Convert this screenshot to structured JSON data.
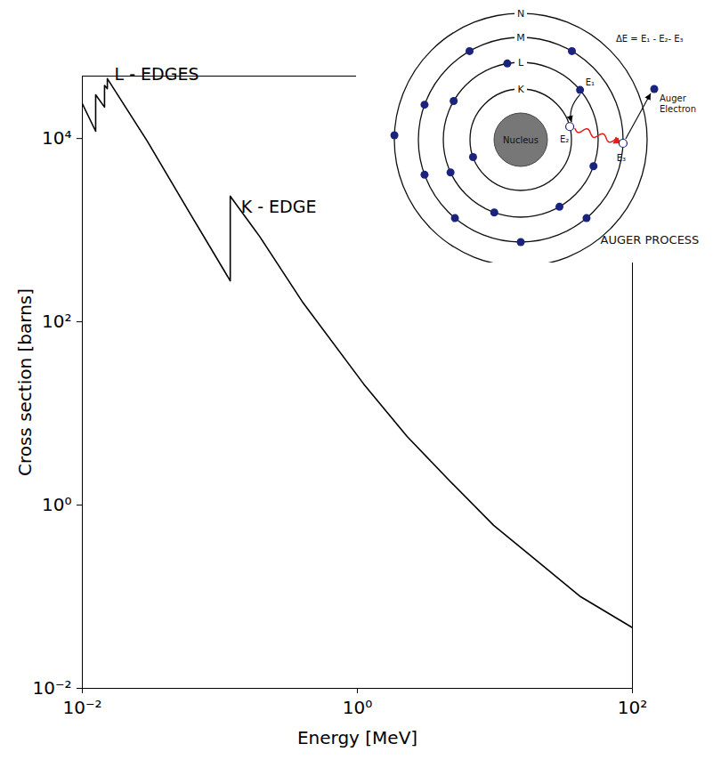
{
  "chart_data": {
    "type": "line",
    "log": true,
    "grid": false,
    "x_label": "Energy [MeV]",
    "y_label": "Cross section [barns]",
    "xlim": [
      0.01,
      100
    ],
    "ylim": [
      0.01,
      48000
    ],
    "xticks": [
      {
        "value": 0.01,
        "label": "10⁻²"
      },
      {
        "value": 1,
        "label": "10⁰"
      },
      {
        "value": 100,
        "label": "10²"
      }
    ],
    "yticks": [
      {
        "value": 0.01,
        "label": "10⁻²"
      },
      {
        "value": 1,
        "label": "10⁰"
      },
      {
        "value": 100,
        "label": "10²"
      },
      {
        "value": 10000,
        "label": "10⁴"
      }
    ],
    "annotations": [
      "L - EDGES",
      "K - EDGE"
    ],
    "series": [
      {
        "name": "Cross section",
        "color": "#000000",
        "line_style": "solid",
        "x": [
          0.01,
          0.0125,
          0.0125,
          0.0145,
          0.0145,
          0.0152,
          0.0152,
          0.0296,
          0.0612,
          0.119,
          0.119,
          0.195,
          0.404,
          1.11,
          2.3,
          4.75,
          9.8,
          20,
          42,
          100
        ],
        "values": [
          24000,
          12000,
          30000,
          22000,
          38000,
          35000,
          45000,
          9400,
          1490,
          280,
          2350,
          850,
          160,
          21,
          5.6,
          1.8,
          0.6,
          0.25,
          0.1,
          0.046
        ]
      }
    ]
  },
  "inset": {
    "title": "AUGER PROCESS",
    "nucleus": "Nucleus",
    "shells": [
      "K",
      "L",
      "M",
      "N"
    ],
    "levels": [
      "E₁",
      "E₂",
      "E₃"
    ],
    "formula": "ΔE = E₁ - E₂- E₃",
    "electron": "Auger Electron"
  }
}
